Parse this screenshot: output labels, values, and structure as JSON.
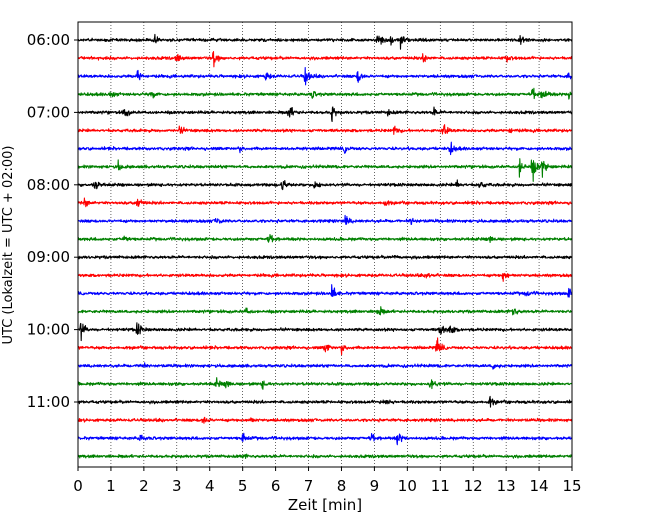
{
  "chart_data": {
    "type": "line",
    "title": "",
    "xlabel": "Zeit  [min]",
    "ylabel": "UTC (Lokalzeit = UTC + 02:00)",
    "xlim": [
      0,
      15
    ],
    "x_ticks": [
      0,
      1,
      2,
      3,
      4,
      5,
      6,
      7,
      8,
      9,
      10,
      11,
      12,
      13,
      14,
      15
    ],
    "x_tick_labels": [
      "0",
      "1",
      "2",
      "3",
      "4",
      "5",
      "6",
      "7",
      "8",
      "9",
      "10",
      "11",
      "12",
      "13",
      "14",
      "15"
    ],
    "y_tick_labels": [
      "06:00",
      "07:00",
      "08:00",
      "09:00",
      "10:00",
      "11:00"
    ],
    "grid": "vertical dotted",
    "trace_colors": [
      "#000000",
      "#ff0000",
      "#0000ff",
      "#008000"
    ],
    "traces": [
      {
        "start": "06:00",
        "color": "#000000",
        "events": [
          [
            2.3,
            0.5
          ],
          [
            9.1,
            0.8
          ],
          [
            9.5,
            0.6
          ],
          [
            9.8,
            0.9
          ],
          [
            13.4,
            0.9
          ]
        ]
      },
      {
        "start": "06:15",
        "color": "#ff0000",
        "events": [
          [
            3.0,
            0.5
          ],
          [
            4.1,
            0.9
          ],
          [
            10.5,
            0.6
          ],
          [
            13.0,
            0.4
          ]
        ]
      },
      {
        "start": "06:30",
        "color": "#0000ff",
        "events": [
          [
            1.8,
            0.8
          ],
          [
            5.7,
            0.5
          ],
          [
            6.9,
            1.0
          ],
          [
            8.5,
            0.8
          ],
          [
            14.9,
            0.5
          ]
        ]
      },
      {
        "start": "06:45",
        "color": "#008000",
        "events": [
          [
            1.0,
            0.4
          ],
          [
            2.2,
            0.5
          ],
          [
            7.1,
            0.4
          ],
          [
            13.8,
            0.9
          ],
          [
            14.1,
            0.9
          ],
          [
            14.9,
            0.6
          ]
        ]
      },
      {
        "start": "07:00",
        "color": "#000000",
        "events": [
          [
            1.4,
            0.7
          ],
          [
            6.4,
            0.9
          ],
          [
            7.7,
            0.9
          ],
          [
            9.4,
            0.4
          ],
          [
            10.8,
            0.5
          ]
        ]
      },
      {
        "start": "07:15",
        "color": "#ff0000",
        "events": [
          [
            3.1,
            0.4
          ],
          [
            9.6,
            0.5
          ],
          [
            11.1,
            0.8
          ],
          [
            13.1,
            0.4
          ]
        ]
      },
      {
        "start": "07:30",
        "color": "#0000ff",
        "events": [
          [
            4.9,
            0.4
          ],
          [
            8.1,
            0.4
          ],
          [
            11.3,
            0.7
          ]
        ]
      },
      {
        "start": "07:45",
        "color": "#008000",
        "events": [
          [
            1.2,
            0.6
          ],
          [
            13.4,
            1.2
          ],
          [
            13.8,
            1.4
          ],
          [
            14.1,
            1.1
          ]
        ]
      },
      {
        "start": "08:00",
        "color": "#000000",
        "events": [
          [
            0.5,
            0.7
          ],
          [
            6.2,
            0.8
          ],
          [
            7.2,
            0.8
          ],
          [
            11.5,
            0.5
          ],
          [
            12.2,
            0.5
          ]
        ]
      },
      {
        "start": "08:15",
        "color": "#ff0000",
        "events": [
          [
            0.2,
            0.6
          ],
          [
            1.8,
            0.8
          ],
          [
            9.3,
            0.4
          ]
        ]
      },
      {
        "start": "08:30",
        "color": "#0000ff",
        "events": [
          [
            4.2,
            0.5
          ],
          [
            8.1,
            0.8
          ],
          [
            10.1,
            0.4
          ]
        ]
      },
      {
        "start": "08:45",
        "color": "#008000",
        "events": [
          [
            1.4,
            0.4
          ],
          [
            5.8,
            0.8
          ],
          [
            12.5,
            0.4
          ]
        ]
      },
      {
        "start": "09:00",
        "color": "#000000",
        "events": [
          [
            9.6,
            0.3
          ]
        ]
      },
      {
        "start": "09:15",
        "color": "#ff0000",
        "events": [
          [
            10.6,
            0.4
          ],
          [
            12.9,
            0.8
          ]
        ]
      },
      {
        "start": "09:30",
        "color": "#0000ff",
        "events": [
          [
            7.7,
            1.0
          ],
          [
            13.6,
            0.4
          ],
          [
            14.9,
            0.5
          ]
        ]
      },
      {
        "start": "09:45",
        "color": "#008000",
        "events": [
          [
            5.1,
            0.4
          ],
          [
            9.1,
            0.8
          ],
          [
            13.2,
            0.6
          ]
        ]
      },
      {
        "start": "10:00",
        "color": "#000000",
        "events": [
          [
            0.1,
            0.9
          ],
          [
            1.8,
            0.8
          ],
          [
            11.0,
            0.9
          ],
          [
            11.3,
            0.6
          ]
        ]
      },
      {
        "start": "10:15",
        "color": "#ff0000",
        "events": [
          [
            7.5,
            0.7
          ],
          [
            8.0,
            0.7
          ],
          [
            10.9,
            1.0
          ]
        ]
      },
      {
        "start": "10:30",
        "color": "#0000ff",
        "events": [
          [
            1.9,
            0.4
          ],
          [
            12.6,
            0.4
          ]
        ]
      },
      {
        "start": "10:45",
        "color": "#008000",
        "events": [
          [
            4.2,
            0.5
          ],
          [
            4.5,
            0.5
          ],
          [
            5.6,
            0.4
          ],
          [
            10.7,
            0.8
          ]
        ]
      },
      {
        "start": "11:00",
        "color": "#000000",
        "events": [
          [
            9.3,
            0.7
          ],
          [
            12.5,
            0.6
          ]
        ]
      },
      {
        "start": "11:15",
        "color": "#ff0000",
        "events": [
          [
            3.8,
            0.6
          ],
          [
            5.2,
            0.4
          ]
        ]
      },
      {
        "start": "11:30",
        "color": "#0000ff",
        "events": [
          [
            1.9,
            0.4
          ],
          [
            5.0,
            0.6
          ],
          [
            8.9,
            0.7
          ],
          [
            9.7,
            0.7
          ]
        ]
      },
      {
        "start": "11:45",
        "color": "#008000",
        "events": [
          [
            5.0,
            0.2
          ]
        ]
      }
    ]
  }
}
